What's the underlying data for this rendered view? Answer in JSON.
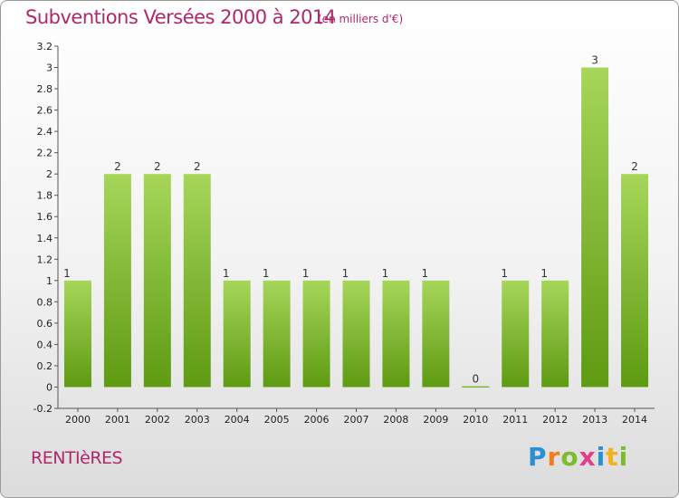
{
  "title": "Subventions Versées 2000 à 2014",
  "unit_note": "(en milliers d'€)",
  "commune": "RENTIèRES",
  "logo": {
    "text": "Proxiti",
    "letters": [
      "P",
      "r",
      "o",
      "x",
      "i",
      "t",
      "i"
    ],
    "colors": [
      "#2a8fd4",
      "#f07c1e",
      "#7cbb2a",
      "#e23f8a",
      "#2a8fd4",
      "#f0b21e",
      "#7cbb2a"
    ]
  },
  "colors": {
    "title": "#b0276b",
    "bar_light": "#a6d65a",
    "bar_dark": "#5e9a12"
  },
  "chart_data": {
    "type": "bar",
    "title": "Subventions Versées 2000 à 2014",
    "categories": [
      "2000",
      "2001",
      "2002",
      "2003",
      "2004",
      "2005",
      "2006",
      "2007",
      "2008",
      "2009",
      "2010",
      "2011",
      "2012",
      "2013",
      "2014"
    ],
    "values": [
      1,
      2,
      2,
      2,
      1,
      1,
      1,
      1,
      1,
      1,
      0,
      1,
      1,
      3,
      2
    ],
    "data_labels": [
      "1",
      "2",
      "2",
      "2",
      "1",
      "1",
      "1",
      "1",
      "1",
      "1",
      "0",
      "1",
      "1",
      "3",
      "2"
    ],
    "ylim": [
      -0.2,
      3.2
    ],
    "yticks": [
      "3.2",
      "3",
      "2.8",
      "2.6",
      "2.4",
      "2.2",
      "2",
      "1.8",
      "1.6",
      "1.4",
      "1.2",
      "1",
      "0.8",
      "0.6",
      "0.4",
      "0.2",
      "0",
      "-0.2"
    ],
    "ytick_values": [
      3.2,
      3,
      2.8,
      2.6,
      2.4,
      2.2,
      2,
      1.8,
      1.6,
      1.4,
      1.2,
      1,
      0.8,
      0.6,
      0.4,
      0.2,
      0,
      -0.2
    ],
    "grid": false,
    "legend": "none"
  }
}
